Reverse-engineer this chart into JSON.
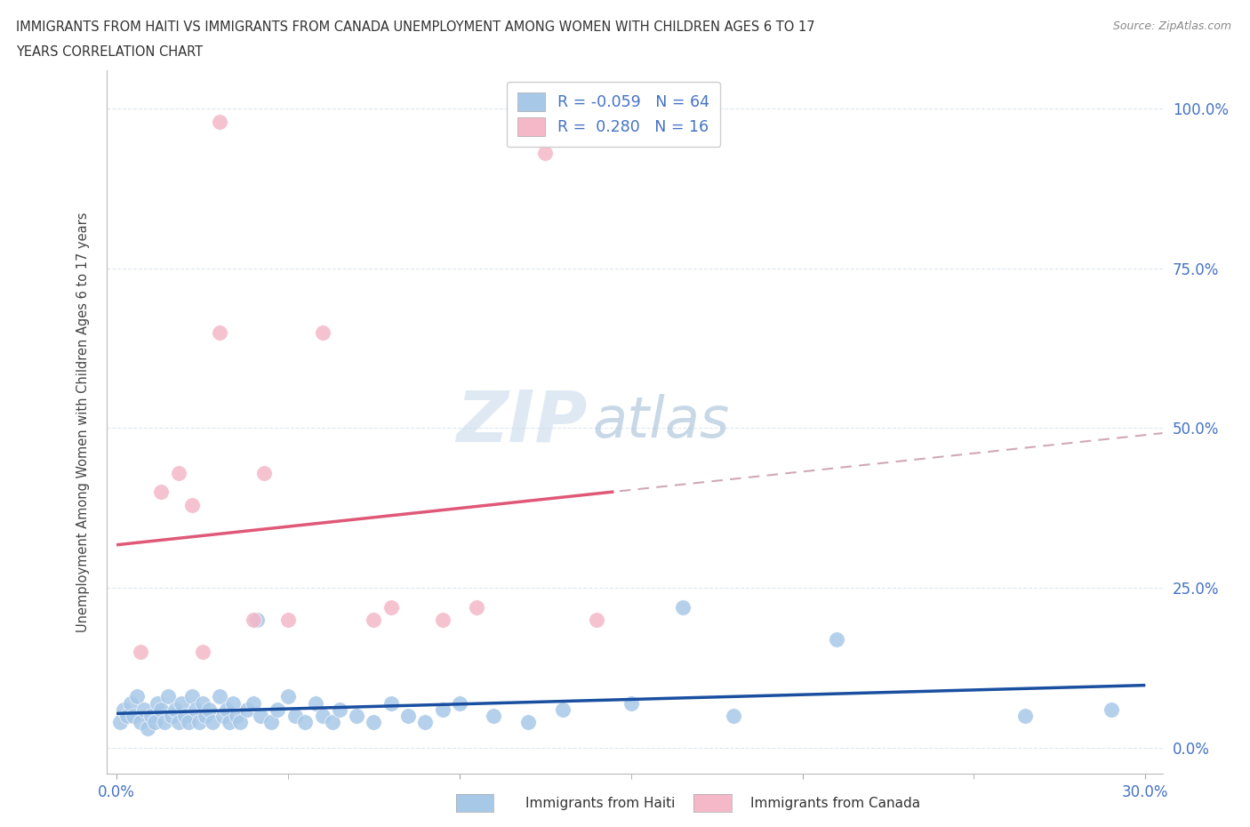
{
  "title_line1": "IMMIGRANTS FROM HAITI VS IMMIGRANTS FROM CANADA UNEMPLOYMENT AMONG WOMEN WITH CHILDREN AGES 6 TO 17",
  "title_line2": "YEARS CORRELATION CHART",
  "source": "Source: ZipAtlas.com",
  "ylabel": "Unemployment Among Women with Children Ages 6 to 17 years",
  "xlabel_haiti": "Immigrants from Haiti",
  "xlabel_canada": "Immigrants from Canada",
  "r_haiti": -0.059,
  "n_haiti": 64,
  "r_canada": 0.28,
  "n_canada": 16,
  "xlim": [
    -0.003,
    0.305
  ],
  "ylim": [
    -0.04,
    1.06
  ],
  "color_haiti": "#a8c8e8",
  "color_canada": "#f4b8c8",
  "color_haiti_line": "#1a4fa0",
  "color_canada_line": "#e05878",
  "color_dashed": "#d0a8b8",
  "haiti_x": [
    0.002,
    0.004,
    0.005,
    0.006,
    0.008,
    0.009,
    0.01,
    0.011,
    0.012,
    0.013,
    0.014,
    0.015,
    0.016,
    0.017,
    0.018,
    0.019,
    0.02,
    0.021,
    0.022,
    0.023,
    0.024,
    0.025,
    0.026,
    0.027,
    0.028,
    0.03,
    0.031,
    0.032,
    0.033,
    0.034,
    0.035,
    0.036,
    0.038,
    0.04,
    0.041,
    0.042,
    0.043,
    0.045,
    0.047,
    0.048,
    0.05,
    0.052,
    0.055,
    0.058,
    0.06,
    0.062,
    0.065,
    0.068,
    0.07,
    0.075,
    0.08,
    0.085,
    0.09,
    0.095,
    0.1,
    0.11,
    0.12,
    0.135,
    0.15,
    0.17,
    0.185,
    0.21,
    0.27,
    0.29
  ],
  "haiti_y": [
    0.04,
    0.05,
    0.03,
    0.06,
    0.04,
    0.07,
    0.05,
    0.03,
    0.06,
    0.04,
    0.05,
    0.07,
    0.03,
    0.06,
    0.04,
    0.05,
    0.03,
    0.07,
    0.05,
    0.08,
    0.04,
    0.06,
    0.03,
    0.05,
    0.04,
    0.07,
    0.03,
    0.06,
    0.04,
    0.08,
    0.05,
    0.03,
    0.06,
    0.05,
    0.2,
    0.04,
    0.07,
    0.03,
    0.05,
    0.04,
    0.08,
    0.03,
    0.06,
    0.04,
    0.05,
    0.07,
    0.03,
    0.06,
    0.04,
    0.05,
    0.07,
    0.03,
    0.05,
    0.04,
    0.07,
    0.03,
    0.05,
    0.04,
    0.07,
    0.22,
    0.04,
    0.17,
    0.05,
    0.06
  ],
  "canada_x": [
    0.008,
    0.013,
    0.018,
    0.022,
    0.025,
    0.03,
    0.04,
    0.043,
    0.05,
    0.06,
    0.075,
    0.08,
    0.095,
    0.105,
    0.12,
    0.14
  ],
  "canada_y": [
    0.15,
    0.4,
    0.42,
    0.38,
    0.15,
    0.65,
    0.2,
    0.42,
    0.2,
    0.65,
    0.2,
    0.22,
    0.2,
    0.22,
    0.93,
    0.2
  ],
  "watermark_zip": "ZIP",
  "watermark_atlas": "atlas",
  "background_color": "#ffffff",
  "grid_color": "#dde8f0"
}
